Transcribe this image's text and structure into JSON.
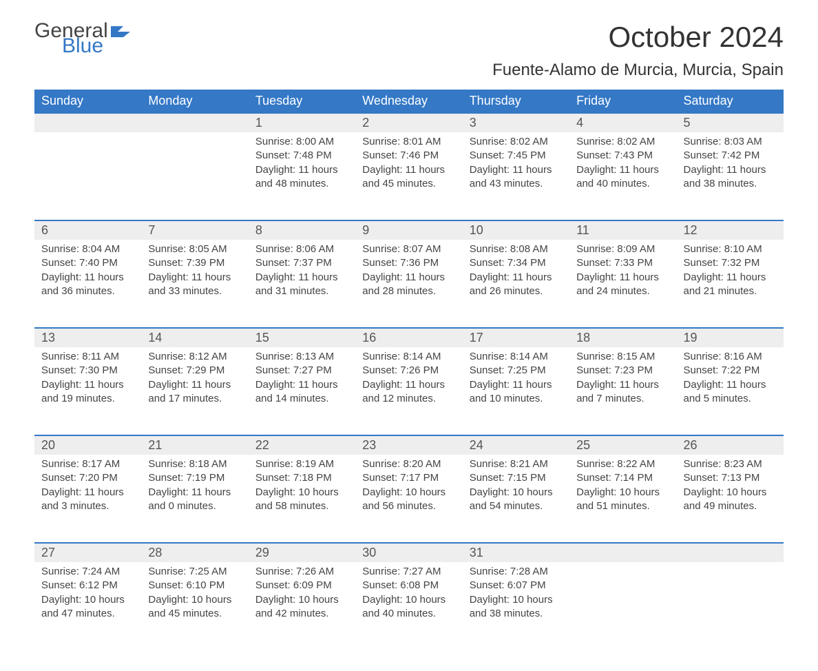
{
  "brand": {
    "text1": "General",
    "text2": "Blue",
    "logo_color": "#3478c6",
    "text1_color": "#444444"
  },
  "title": "October 2024",
  "location": "Fuente-Alamo de Murcia, Murcia, Spain",
  "colors": {
    "header_bg": "#3478c6",
    "header_fg": "#ffffff",
    "row_accent": "#3478c6",
    "daynum_bg": "#eeeeee",
    "text": "#444444"
  },
  "dayHeaders": [
    "Sunday",
    "Monday",
    "Tuesday",
    "Wednesday",
    "Thursday",
    "Friday",
    "Saturday"
  ],
  "weeks": [
    [
      null,
      null,
      {
        "n": "1",
        "sunrise": "8:00 AM",
        "sunset": "7:48 PM",
        "daylight": "11 hours and 48 minutes."
      },
      {
        "n": "2",
        "sunrise": "8:01 AM",
        "sunset": "7:46 PM",
        "daylight": "11 hours and 45 minutes."
      },
      {
        "n": "3",
        "sunrise": "8:02 AM",
        "sunset": "7:45 PM",
        "daylight": "11 hours and 43 minutes."
      },
      {
        "n": "4",
        "sunrise": "8:02 AM",
        "sunset": "7:43 PM",
        "daylight": "11 hours and 40 minutes."
      },
      {
        "n": "5",
        "sunrise": "8:03 AM",
        "sunset": "7:42 PM",
        "daylight": "11 hours and 38 minutes."
      }
    ],
    [
      {
        "n": "6",
        "sunrise": "8:04 AM",
        "sunset": "7:40 PM",
        "daylight": "11 hours and 36 minutes."
      },
      {
        "n": "7",
        "sunrise": "8:05 AM",
        "sunset": "7:39 PM",
        "daylight": "11 hours and 33 minutes."
      },
      {
        "n": "8",
        "sunrise": "8:06 AM",
        "sunset": "7:37 PM",
        "daylight": "11 hours and 31 minutes."
      },
      {
        "n": "9",
        "sunrise": "8:07 AM",
        "sunset": "7:36 PM",
        "daylight": "11 hours and 28 minutes."
      },
      {
        "n": "10",
        "sunrise": "8:08 AM",
        "sunset": "7:34 PM",
        "daylight": "11 hours and 26 minutes."
      },
      {
        "n": "11",
        "sunrise": "8:09 AM",
        "sunset": "7:33 PM",
        "daylight": "11 hours and 24 minutes."
      },
      {
        "n": "12",
        "sunrise": "8:10 AM",
        "sunset": "7:32 PM",
        "daylight": "11 hours and 21 minutes."
      }
    ],
    [
      {
        "n": "13",
        "sunrise": "8:11 AM",
        "sunset": "7:30 PM",
        "daylight": "11 hours and 19 minutes."
      },
      {
        "n": "14",
        "sunrise": "8:12 AM",
        "sunset": "7:29 PM",
        "daylight": "11 hours and 17 minutes."
      },
      {
        "n": "15",
        "sunrise": "8:13 AM",
        "sunset": "7:27 PM",
        "daylight": "11 hours and 14 minutes."
      },
      {
        "n": "16",
        "sunrise": "8:14 AM",
        "sunset": "7:26 PM",
        "daylight": "11 hours and 12 minutes."
      },
      {
        "n": "17",
        "sunrise": "8:14 AM",
        "sunset": "7:25 PM",
        "daylight": "11 hours and 10 minutes."
      },
      {
        "n": "18",
        "sunrise": "8:15 AM",
        "sunset": "7:23 PM",
        "daylight": "11 hours and 7 minutes."
      },
      {
        "n": "19",
        "sunrise": "8:16 AM",
        "sunset": "7:22 PM",
        "daylight": "11 hours and 5 minutes."
      }
    ],
    [
      {
        "n": "20",
        "sunrise": "8:17 AM",
        "sunset": "7:20 PM",
        "daylight": "11 hours and 3 minutes."
      },
      {
        "n": "21",
        "sunrise": "8:18 AM",
        "sunset": "7:19 PM",
        "daylight": "11 hours and 0 minutes."
      },
      {
        "n": "22",
        "sunrise": "8:19 AM",
        "sunset": "7:18 PM",
        "daylight": "10 hours and 58 minutes."
      },
      {
        "n": "23",
        "sunrise": "8:20 AM",
        "sunset": "7:17 PM",
        "daylight": "10 hours and 56 minutes."
      },
      {
        "n": "24",
        "sunrise": "8:21 AM",
        "sunset": "7:15 PM",
        "daylight": "10 hours and 54 minutes."
      },
      {
        "n": "25",
        "sunrise": "8:22 AM",
        "sunset": "7:14 PM",
        "daylight": "10 hours and 51 minutes."
      },
      {
        "n": "26",
        "sunrise": "8:23 AM",
        "sunset": "7:13 PM",
        "daylight": "10 hours and 49 minutes."
      }
    ],
    [
      {
        "n": "27",
        "sunrise": "7:24 AM",
        "sunset": "6:12 PM",
        "daylight": "10 hours and 47 minutes."
      },
      {
        "n": "28",
        "sunrise": "7:25 AM",
        "sunset": "6:10 PM",
        "daylight": "10 hours and 45 minutes."
      },
      {
        "n": "29",
        "sunrise": "7:26 AM",
        "sunset": "6:09 PM",
        "daylight": "10 hours and 42 minutes."
      },
      {
        "n": "30",
        "sunrise": "7:27 AM",
        "sunset": "6:08 PM",
        "daylight": "10 hours and 40 minutes."
      },
      {
        "n": "31",
        "sunrise": "7:28 AM",
        "sunset": "6:07 PM",
        "daylight": "10 hours and 38 minutes."
      },
      null,
      null
    ]
  ],
  "labels": {
    "sunrise": "Sunrise: ",
    "sunset": "Sunset: ",
    "daylight": "Daylight: "
  }
}
